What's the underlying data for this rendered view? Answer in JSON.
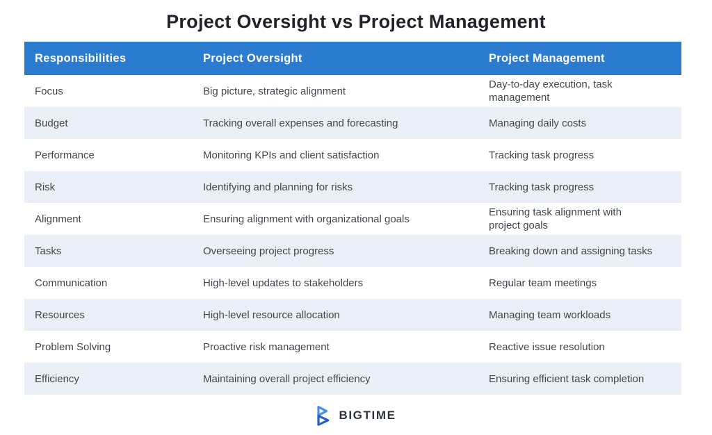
{
  "chart_data": {
    "type": "table",
    "title": "Project Oversight vs Project Management",
    "columns": [
      "Responsibilities",
      "Project Oversight",
      "Project Management"
    ],
    "rows": [
      [
        "Focus",
        "Big picture, strategic alignment",
        "Day-to-day execution, task management"
      ],
      [
        "Budget",
        "Tracking overall expenses and forecasting",
        "Managing daily costs"
      ],
      [
        "Performance",
        "Monitoring KPIs and client satisfaction",
        "Tracking task progress"
      ],
      [
        "Risk",
        "Identifying and planning for risks",
        "Tracking task progress"
      ],
      [
        "Alignment",
        "Ensuring alignment with organizational goals",
        "Ensuring task alignment with project goals"
      ],
      [
        "Tasks",
        "Overseeing project progress",
        "Breaking down and assigning tasks"
      ],
      [
        "Communication",
        "High-level updates to stakeholders",
        "Regular team meetings"
      ],
      [
        "Resources",
        "High-level resource allocation",
        "Managing team workloads"
      ],
      [
        "Problem Solving",
        "Proactive risk management",
        "Reactive issue resolution"
      ],
      [
        "Efficiency",
        "Maintaining overall project efficiency",
        "Ensuring efficient task completion"
      ]
    ],
    "layout": {
      "header_position": "top",
      "alternating_rows": true,
      "grid": false
    }
  },
  "theme": {
    "header_bg": "#2b7bd1",
    "header_text": "#ffffff",
    "row_bg": "#ffffff",
    "row_alt_bg": "#ebeff7",
    "body_text": "#41464d",
    "title_text": "#1f2329"
  },
  "footer": {
    "brand": "BIGTIME",
    "logo_icon": "bigtime-chevron-b-icon",
    "logo_color_top": "#4a90e2",
    "logo_color_bottom": "#2560c4"
  }
}
